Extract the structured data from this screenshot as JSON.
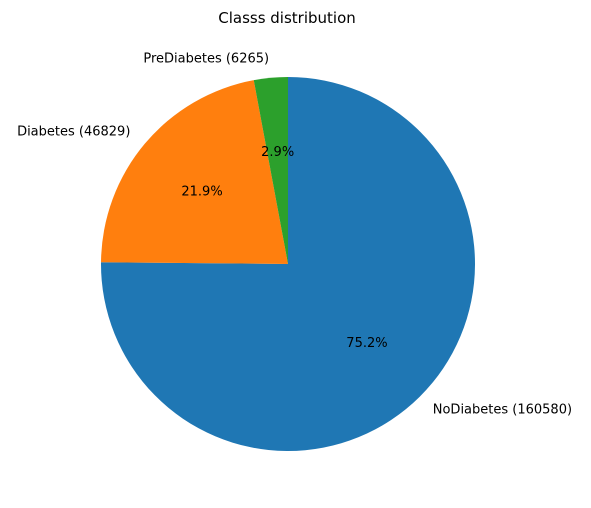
{
  "chart_data": {
    "type": "pie",
    "title": "Classs distribution",
    "start_angle_deg": 90,
    "direction": "clockwise",
    "slices": [
      {
        "label": "NoDiabetes (160580)",
        "value": 160580,
        "percent_label": "75.2%",
        "color": "#1f77b4"
      },
      {
        "label": "Diabetes (46829)",
        "value": 46829,
        "percent_label": "21.9%",
        "color": "#ff7f0e"
      },
      {
        "label": "PreDiabetes (6265)",
        "value": 6265,
        "percent_label": "2.9%",
        "color": "#2ca02c"
      }
    ]
  }
}
